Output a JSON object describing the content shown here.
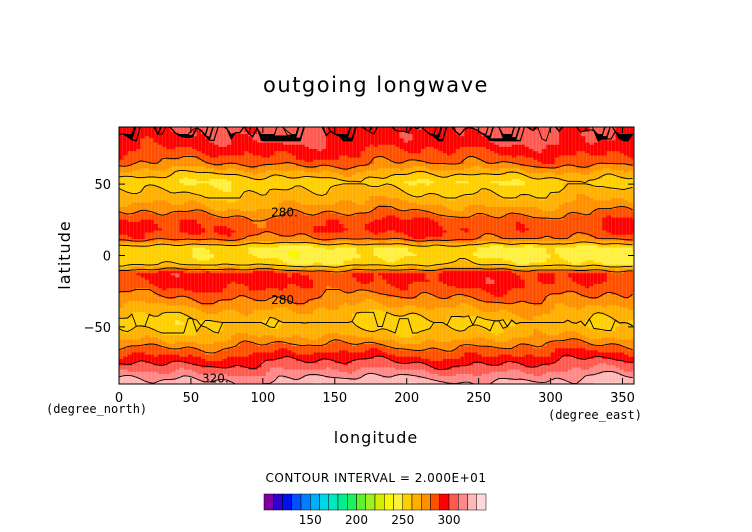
{
  "chart_data": {
    "type": "heatmap",
    "title": "outgoing longwave",
    "xlabel": "longitude",
    "ylabel": "latitude",
    "x_units": "(degree_east)",
    "y_units": "(degree_north)",
    "xlim": [
      0,
      358
    ],
    "ylim": [
      -90,
      90
    ],
    "x_ticks": [
      0,
      50,
      100,
      150,
      200,
      250,
      300,
      350
    ],
    "y_ticks": [
      -50,
      0,
      50
    ],
    "x_tick_labels": [
      "0",
      "50",
      "100",
      "150",
      "200",
      "250",
      "300",
      "350"
    ],
    "y_tick_labels": [
      "−50",
      "0",
      "50"
    ],
    "contour_interval_text": "CONTOUR INTERVAL = 2.000E+01",
    "contour_labels": [
      {
        "text": "280.",
        "lon": 115,
        "lat": 30
      },
      {
        "text": "280.",
        "lon": 115,
        "lat": -31
      },
      {
        "text": "320.",
        "lon": 67,
        "lat": -86
      }
    ],
    "colorbar": {
      "ticks": [
        150,
        200,
        250,
        300
      ],
      "tick_labels": [
        "150",
        "200",
        "250",
        "300"
      ],
      "levels": [
        100,
        110,
        120,
        130,
        140,
        150,
        160,
        170,
        180,
        190,
        200,
        210,
        220,
        230,
        240,
        250,
        260,
        270,
        280,
        290,
        300,
        310,
        320,
        330
      ],
      "colors": [
        "#8000a0",
        "#3000d0",
        "#0010f0",
        "#0050ff",
        "#0080ff",
        "#00b0ff",
        "#00d8e8",
        "#00e8c0",
        "#00f090",
        "#20f060",
        "#60f030",
        "#a0f020",
        "#d0f000",
        "#f8f800",
        "#fff040",
        "#ffd000",
        "#ffb000",
        "#ff9000",
        "#ff5000",
        "#ff0000",
        "#ff5a50",
        "#ff8888",
        "#ffb8b8",
        "#ffd8d8"
      ]
    },
    "zonal_profile": {
      "lat": [
        -90,
        -85,
        -78,
        -70,
        -62,
        -55,
        -47,
        -40,
        -32,
        -25,
        -18,
        -12,
        -6,
        0,
        6,
        12,
        18,
        25,
        32,
        40,
        47,
        52,
        58,
        65,
        72,
        80,
        85,
        90
      ],
      "olr": [
        325,
        318,
        305,
        292,
        278,
        265,
        258,
        265,
        276,
        285,
        292,
        292,
        255,
        248,
        250,
        282,
        290,
        287,
        276,
        265,
        258,
        253,
        265,
        282,
        290,
        298,
        300,
        300
      ]
    }
  }
}
